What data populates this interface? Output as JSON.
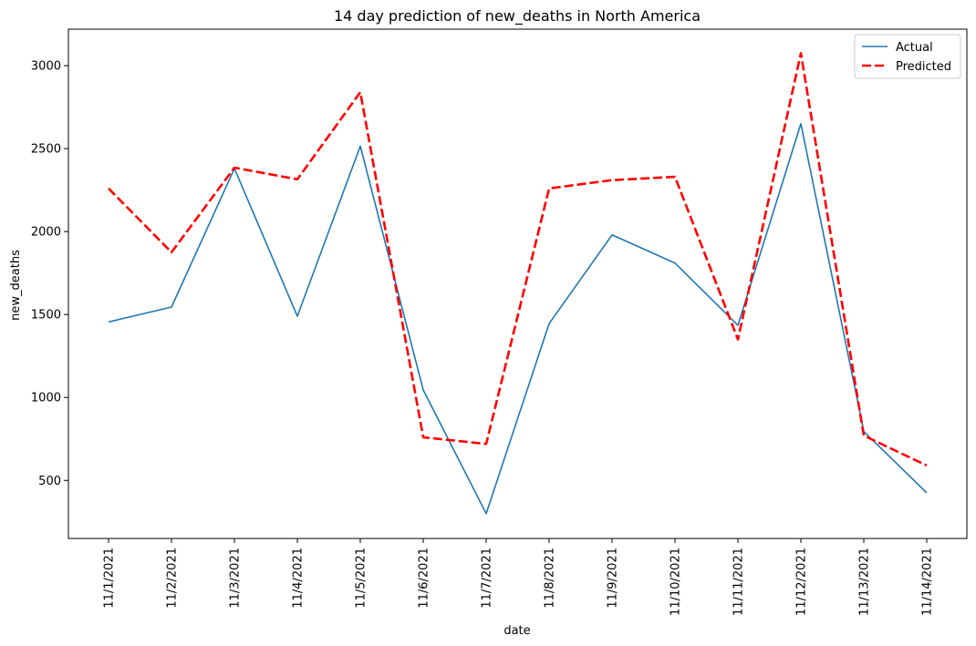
{
  "chart_data": {
    "type": "line",
    "title": "14 day prediction of new_deaths in North America",
    "xlabel": "date",
    "ylabel": "new_deaths",
    "categories": [
      "11/1/2021",
      "11/2/2021",
      "11/3/2021",
      "11/4/2021",
      "11/5/2021",
      "11/6/2021",
      "11/7/2021",
      "11/8/2021",
      "11/9/2021",
      "11/10/2021",
      "11/11/2021",
      "11/12/2021",
      "11/13/2021",
      "11/14/2021"
    ],
    "ylim": [
      150,
      3220
    ],
    "yticks": [
      500,
      1000,
      1500,
      2000,
      2500,
      3000
    ],
    "ytick_labels": [
      "500",
      "1000",
      "1500",
      "2000",
      "2500",
      "3000"
    ],
    "grid": false,
    "legend_position": "top-right",
    "series": [
      {
        "name": "Actual",
        "color": "#1f77b4",
        "style": "solid",
        "values": [
          1455,
          1545,
          2380,
          1490,
          2515,
          1045,
          300,
          1445,
          1980,
          1810,
          1435,
          2650,
          795,
          425
        ]
      },
      {
        "name": "Predicted",
        "color": "#ff0000",
        "style": "dashed",
        "values": [
          2260,
          1875,
          2385,
          2315,
          2840,
          760,
          720,
          2260,
          2310,
          2330,
          1350,
          3075,
          770,
          590
        ]
      }
    ]
  }
}
